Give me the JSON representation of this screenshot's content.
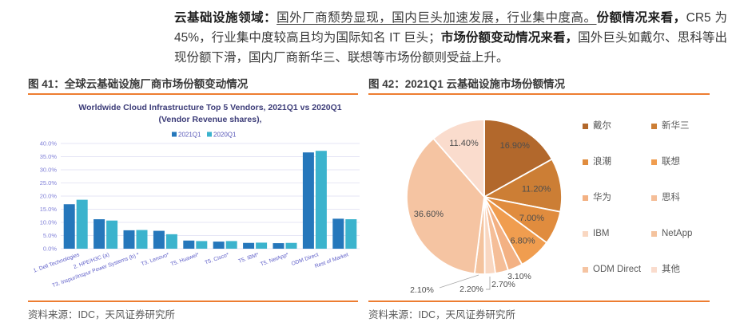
{
  "paragraph": {
    "bold_lead": "云基础设施领域：",
    "underlined": "国外厂商颓势显现，国内巨头加速发展，行业集中度高。",
    "bold_share": "份额情况来看，",
    "text_cr5": "CR5 为 45%，行业集中度较高且均为国际知名 IT 巨头；",
    "bold_change": "市场份额变动情况来看，",
    "text_rest": "国外巨头如戴尔、思科等出现份额下滑，国内厂商新华三、联想等市场份额则受益上升。"
  },
  "figures": {
    "left": {
      "title": "图 41：全球云基础设施厂商市场份额变动情况",
      "source": "资料来源：IDC，天风证券研究所"
    },
    "right": {
      "title": "图 42：2021Q1 云基础设施市场份额情况",
      "source": "资料来源：IDC，天风证券研究所"
    }
  },
  "theme": {
    "accent_rule": "#ED7D31",
    "bar_title_color": "#3C3C78",
    "axis_label_color": "#8080D8",
    "xtick_color": "#5E5EC8",
    "gridline_color": "#E6E6F5",
    "pie_label_color": "#4D4D4D",
    "leader_color": "#A9A9A9"
  },
  "chart_data": [
    {
      "type": "bar",
      "title": "Worldwide Cloud Infrastructure Top 5 Vendors, 2021Q1 vs 2020Q1",
      "subtitle": "(Vendor Revenue shares),",
      "categories": [
        "1. Dell Technologies",
        "2. HPE/H3C (a)",
        "T3. Inspur/Inspur Power Systems (b) *",
        "T3. Lenovo*",
        "T5. Huawei*",
        "T5. Cisco*",
        "T5. IBM*",
        "T5. NetApp*",
        "ODM Direct",
        "Rest of Market"
      ],
      "series": [
        {
          "name": "2021Q1",
          "color": "#2577BB",
          "values": [
            16.9,
            11.2,
            7.0,
            6.8,
            3.1,
            2.7,
            2.2,
            2.1,
            36.6,
            11.4
          ]
        },
        {
          "name": "2020Q1",
          "color": "#3BB3CD",
          "values": [
            18.6,
            10.7,
            7.1,
            5.5,
            2.9,
            2.9,
            2.3,
            2.2,
            37.2,
            11.2
          ]
        }
      ],
      "ylim": [
        0,
        40
      ],
      "ytick_step": 5,
      "ytick_labels": [
        "0.0%",
        "5.0%",
        "10.0%",
        "15.0%",
        "20.0%",
        "25.0%",
        "30.0%",
        "35.0%",
        "40.0%"
      ],
      "grid": true,
      "legend_position": "top"
    },
    {
      "type": "pie",
      "labels": [
        "戴尔",
        "新华三",
        "浪潮",
        "联想",
        "华为",
        "思科",
        "IBM",
        "NetApp",
        "ODM Direct",
        "其他"
      ],
      "values": [
        16.9,
        11.2,
        7.0,
        6.8,
        3.1,
        2.7,
        2.2,
        2.1,
        36.6,
        11.4
      ],
      "data_labels": [
        "16.90%",
        "11.20%",
        "7.00%",
        "6.80%",
        "3.10%",
        "2.70%",
        "2.20%",
        "2.10%",
        "36.60%",
        "11.40%"
      ],
      "colors": [
        "#B2682C",
        "#CC7E35",
        "#E08C3E",
        "#F09D4F",
        "#F3B183",
        "#F5BE98",
        "#F9D7C1",
        "#F4C39E",
        "#F5C4A2",
        "#FADCCD"
      ],
      "start_angle_deg": 0,
      "direction": "clockwise",
      "legend_position": "right"
    }
  ]
}
